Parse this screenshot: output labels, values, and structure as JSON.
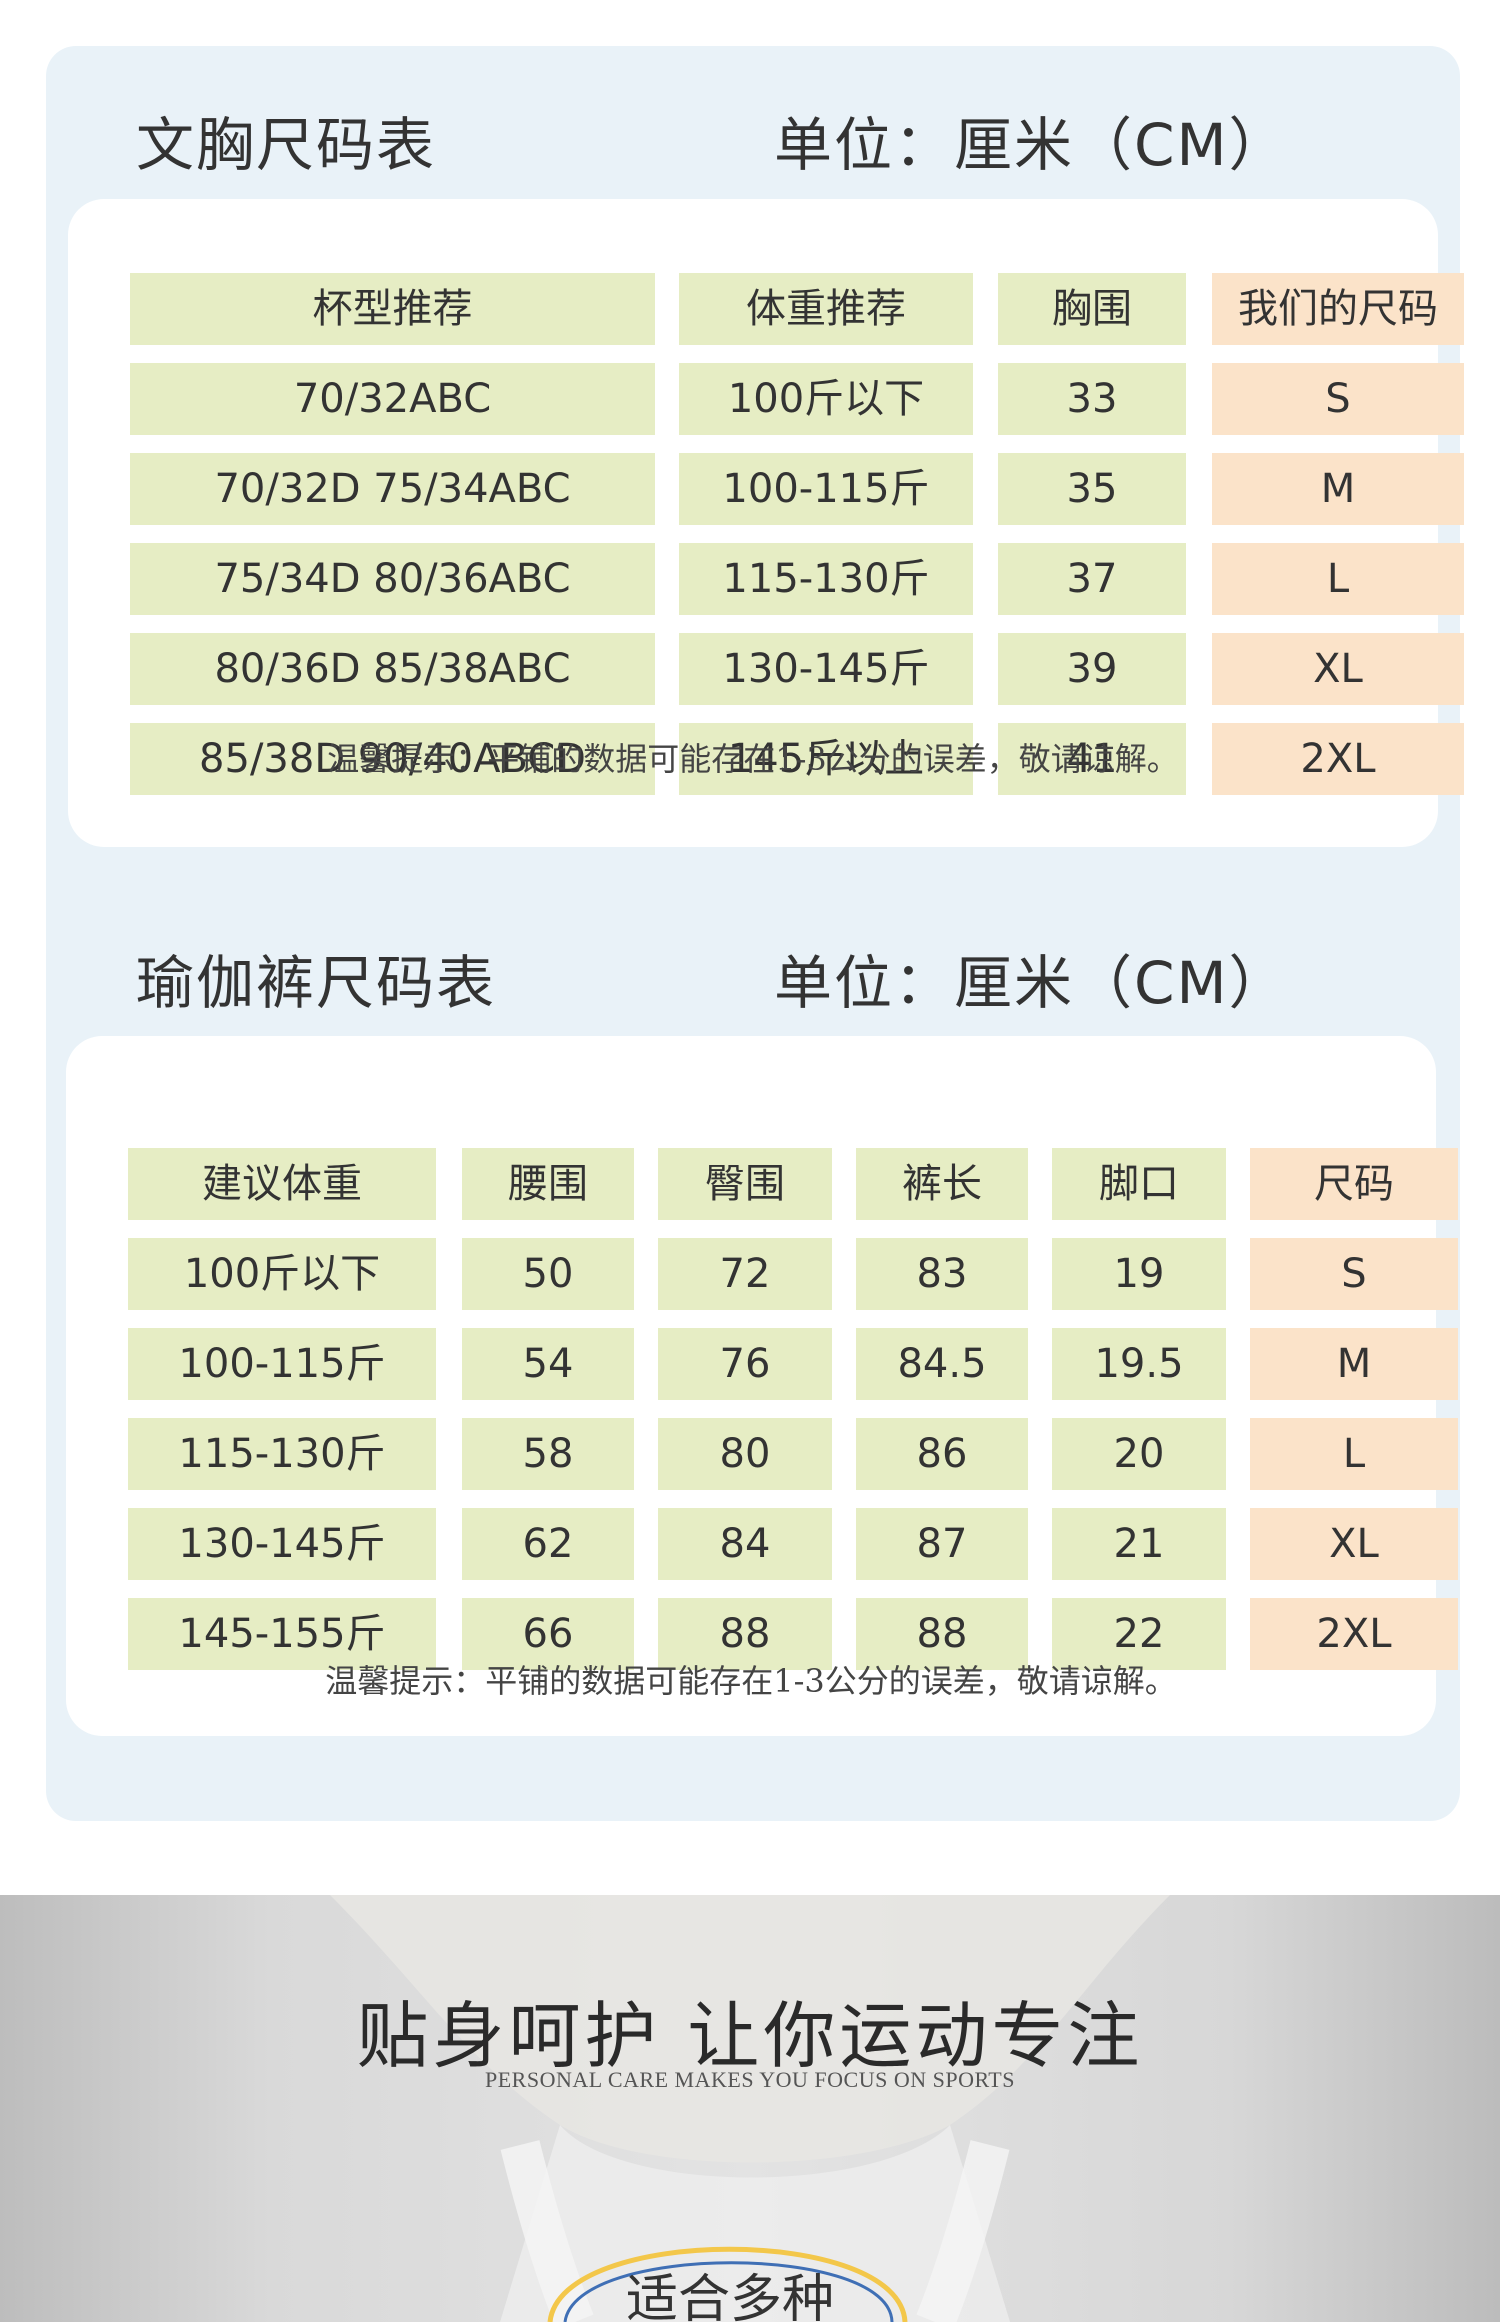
{
  "bra": {
    "title": "文胸尺码表",
    "unit": "单位：厘米（CM）",
    "headers": [
      "杯型推荐",
      "体重推荐",
      "胸围",
      "我们的尺码"
    ],
    "rows": [
      [
        "70/32ABC",
        "100斤以下",
        "33",
        "S"
      ],
      [
        "70/32D  75/34ABC",
        "100-115斤",
        "35",
        "M"
      ],
      [
        "75/34D  80/36ABC",
        "115-130斤",
        "37",
        "L"
      ],
      [
        "80/36D  85/38ABC",
        "130-145斤",
        "39",
        "XL"
      ],
      [
        "85/38D  90/40ABCD",
        "145斤以上",
        "41",
        "2XL"
      ]
    ],
    "note": "温馨提示：平铺的数据可能存在1-3公分的误差，敬请谅解。"
  },
  "pants": {
    "title": "瑜伽裤尺码表",
    "unit": "单位：厘米（CM）",
    "headers": [
      "建议体重",
      "腰围",
      "臀围",
      "裤长",
      "脚口",
      "尺码"
    ],
    "rows": [
      [
        "100斤以下",
        "50",
        "72",
        "83",
        "19",
        "S"
      ],
      [
        "100-115斤",
        "54",
        "76",
        "84.5",
        "19.5",
        "M"
      ],
      [
        "115-130斤",
        "58",
        "80",
        "86",
        "20",
        "L"
      ],
      [
        "130-145斤",
        "62",
        "84",
        "87",
        "21",
        "XL"
      ],
      [
        "145-155斤",
        "66",
        "88",
        "88",
        "22",
        "2XL"
      ]
    ],
    "note": "温馨提示：平铺的数据可能存在1-3公分的误差，敬请谅解。"
  },
  "promo": {
    "title": "贴身呵护 让你运动专注",
    "subtitle": "PERSONAL CARE MAKES YOU FOCUS ON SPORTS",
    "chip": "适合多种"
  },
  "colors": {
    "panel_bg": "#e9f2f8",
    "header_cell": "#e6edc4",
    "size_cell": "#fbe3c9",
    "chip_arc": "#f3c74a",
    "chip_inner_arc": "#3f6fb5"
  }
}
